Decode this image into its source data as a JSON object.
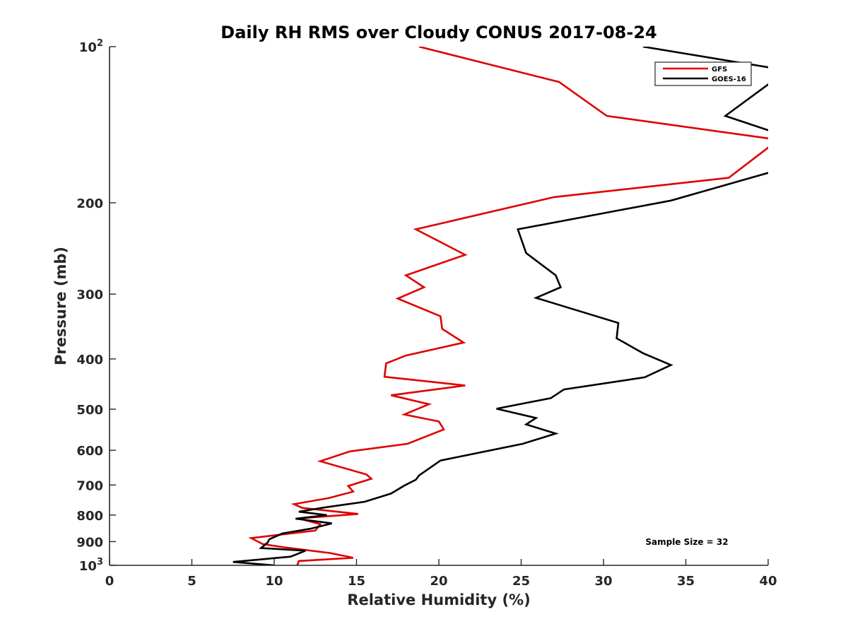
{
  "chart_data": {
    "type": "line",
    "title": "Daily RH RMS over Cloudy CONUS 2017-08-24",
    "xlabel": "Relative Humidity (%)",
    "ylabel": "Pressure (mb)",
    "xlim": [
      0,
      40
    ],
    "ylim": [
      100,
      1000
    ],
    "y_scale": "log",
    "y_reversed": true,
    "grid": false,
    "legend_position": "top-right",
    "x_ticks": [
      0,
      5,
      10,
      15,
      20,
      25,
      30,
      35,
      40
    ],
    "y_ticks": [
      {
        "value": 100,
        "label": "10",
        "sup": "2"
      },
      {
        "value": 200,
        "label": "200"
      },
      {
        "value": 300,
        "label": "300"
      },
      {
        "value": 400,
        "label": "400"
      },
      {
        "value": 500,
        "label": "500"
      },
      {
        "value": 600,
        "label": "600"
      },
      {
        "value": 700,
        "label": "700"
      },
      {
        "value": 800,
        "label": "800"
      },
      {
        "value": 900,
        "label": "900"
      },
      {
        "value": 1000,
        "label": "10",
        "sup": "3"
      }
    ],
    "annotation": "Sample Size = 32",
    "series": [
      {
        "name": "GFS",
        "color": "#e00000",
        "points": [
          [
            18.8,
            100
          ],
          [
            27.3,
            117
          ],
          [
            30.2,
            136
          ],
          [
            40.5,
            151
          ],
          [
            40.3,
            154
          ],
          [
            37.6,
            179
          ],
          [
            27.0,
            195
          ],
          [
            18.6,
            225
          ],
          [
            21.6,
            252
          ],
          [
            18.0,
            276
          ],
          [
            19.1,
            291
          ],
          [
            17.5,
            306
          ],
          [
            20.1,
            331
          ],
          [
            20.2,
            350
          ],
          [
            21.5,
            372
          ],
          [
            18.0,
            394
          ],
          [
            16.8,
            408
          ],
          [
            16.7,
            433
          ],
          [
            21.6,
            450
          ],
          [
            17.1,
            470
          ],
          [
            19.4,
            489
          ],
          [
            17.9,
            512
          ],
          [
            20.0,
            528
          ],
          [
            20.3,
            547
          ],
          [
            18.1,
            583
          ],
          [
            14.6,
            603
          ],
          [
            12.8,
            630
          ],
          [
            15.6,
            668
          ],
          [
            15.9,
            681
          ],
          [
            14.5,
            703
          ],
          [
            14.8,
            721
          ],
          [
            13.3,
            742
          ],
          [
            11.2,
            762
          ],
          [
            11.7,
            775
          ],
          [
            15.1,
            796
          ],
          [
            11.5,
            812
          ],
          [
            12.8,
            833
          ],
          [
            12.5,
            857
          ],
          [
            8.6,
            886
          ],
          [
            9.3,
            910
          ],
          [
            10.8,
            925
          ],
          [
            13.4,
            947
          ],
          [
            14.8,
            967
          ],
          [
            11.5,
            981
          ],
          [
            11.4,
            1000
          ]
        ]
      },
      {
        "name": "GOES-16",
        "color": "#000000",
        "points": [
          [
            32.4,
            100
          ],
          [
            40.3,
            110
          ],
          [
            40.2,
            117
          ],
          [
            37.4,
            136
          ],
          [
            40.3,
            146
          ],
          [
            40.3,
            174
          ],
          [
            34.1,
            198
          ],
          [
            24.8,
            225
          ],
          [
            25.3,
            250
          ],
          [
            27.1,
            276
          ],
          [
            27.4,
            291
          ],
          [
            25.9,
            305
          ],
          [
            30.9,
            341
          ],
          [
            30.8,
            365
          ],
          [
            32.4,
            390
          ],
          [
            34.1,
            411
          ],
          [
            32.5,
            434
          ],
          [
            27.6,
            458
          ],
          [
            26.8,
            476
          ],
          [
            23.5,
            499
          ],
          [
            25.9,
            520
          ],
          [
            25.3,
            535
          ],
          [
            27.1,
            557
          ],
          [
            25.1,
            583
          ],
          [
            20.1,
            628
          ],
          [
            18.8,
            671
          ],
          [
            18.6,
            684
          ],
          [
            17.9,
            702
          ],
          [
            17.1,
            727
          ],
          [
            15.5,
            754
          ],
          [
            13.0,
            774
          ],
          [
            11.5,
            788
          ],
          [
            13.2,
            800
          ],
          [
            11.3,
            813
          ],
          [
            13.5,
            830
          ],
          [
            12.2,
            850
          ],
          [
            10.5,
            868
          ],
          [
            9.7,
            891
          ],
          [
            9.6,
            904
          ],
          [
            9.2,
            926
          ],
          [
            11.9,
            937
          ],
          [
            11.0,
            962
          ],
          [
            7.5,
            985
          ],
          [
            10.0,
            1000
          ]
        ]
      }
    ]
  }
}
